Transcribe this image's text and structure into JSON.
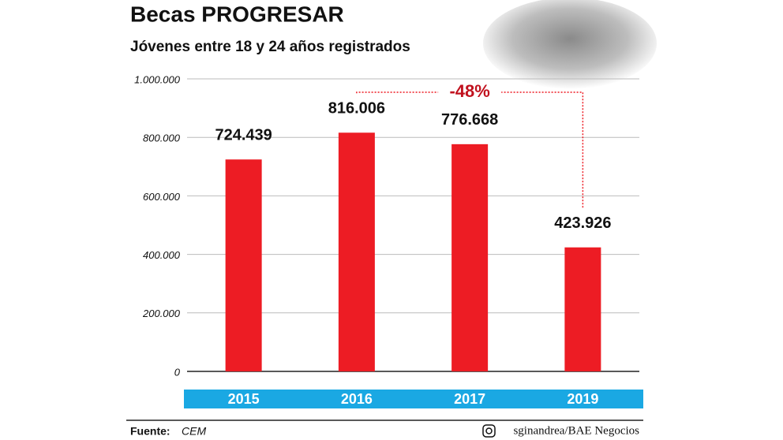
{
  "chart_data": {
    "type": "bar",
    "title": "Becas PROGRESAR",
    "subtitle": "Jóvenes entre 18 y 24 años registrados",
    "categories": [
      "2015",
      "2016",
      "2017",
      "2019"
    ],
    "values": [
      724439,
      816006,
      776668,
      423926
    ],
    "value_labels": [
      "724.439",
      "816.006",
      "776.668",
      "423.926"
    ],
    "color": "#ed1c24",
    "category_band_color": "#1aa8e3",
    "ylim": [
      0,
      1000000
    ],
    "yticks": [
      0,
      {
        "value": 200000,
        "label": "200.000"
      },
      {
        "value": 400000,
        "label": "400.000"
      },
      {
        "value": 600000,
        "label": "600.000"
      },
      {
        "value": 800000,
        "label": "800.000"
      },
      {
        "value": 1000000,
        "label": "1.000.000"
      }
    ],
    "grid": true,
    "annotation": "-48%",
    "source_label": "Fuente:",
    "source": "CEM",
    "credit": "sginandrea/BAE Negocios"
  }
}
